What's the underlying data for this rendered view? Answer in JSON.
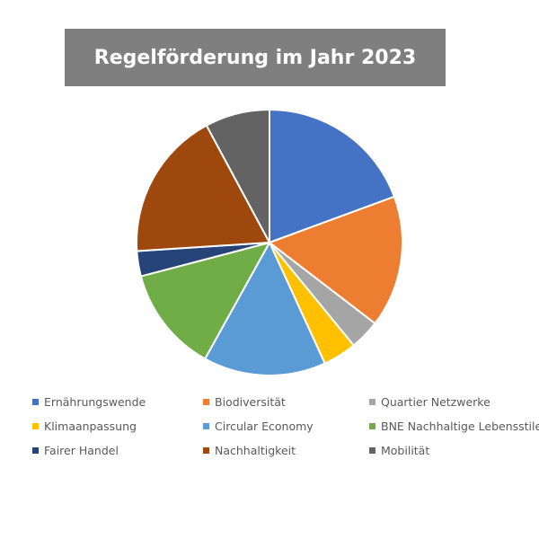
{
  "chart_data": {
    "type": "pie",
    "title": "Regelförderung im Jahr 2023",
    "start_angle_deg": 0,
    "direction": "clockwise",
    "legend_position": "bottom",
    "series": [
      {
        "name": "Ernährungswende",
        "value": 19.0,
        "color": "#4472c4"
      },
      {
        "name": "Biodiversität",
        "value": 15.7,
        "color": "#ed7d31"
      },
      {
        "name": "Quartier Netzwerke",
        "value": 3.6,
        "color": "#a5a5a5"
      },
      {
        "name": "Klimaanpassung",
        "value": 4.0,
        "color": "#ffc000"
      },
      {
        "name": "Circular Economy",
        "value": 14.6,
        "color": "#5b9bd5"
      },
      {
        "name": "BNE Nachhaltige Lebensstile",
        "value": 12.6,
        "color": "#70ad47"
      },
      {
        "name": "Fairer Handel",
        "value": 3.0,
        "color": "#264478"
      },
      {
        "name": "Nachhaltigkeit",
        "value": 17.8,
        "color": "#9e480e"
      },
      {
        "name": "Mobilität",
        "value": 7.7,
        "color": "#636363"
      }
    ]
  }
}
